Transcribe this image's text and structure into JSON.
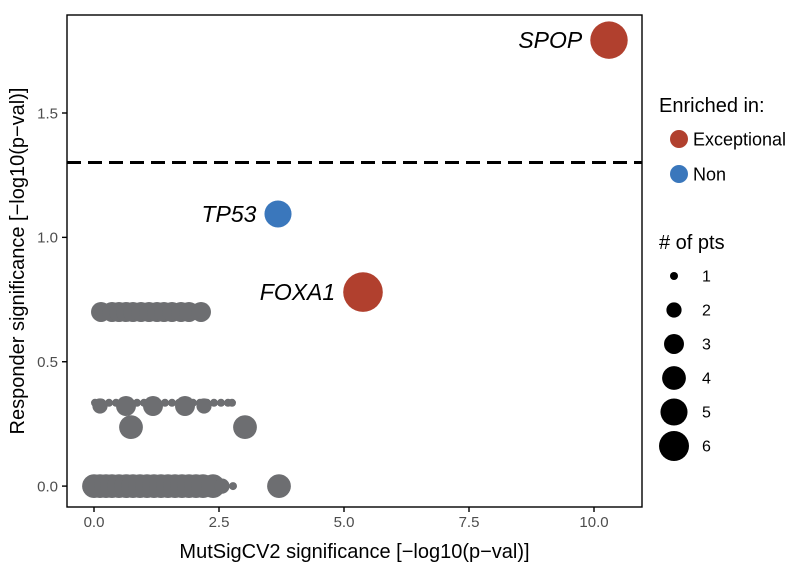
{
  "chart_data": {
    "type": "scatter",
    "xlabel": "MutSigCV2 significance [−log10(p−val)]",
    "ylabel": "Responder significance [−log10(p−val)]",
    "xlim": [
      -0.54,
      10.96
    ],
    "ylim": [
      -0.084,
      1.894
    ],
    "xticks": [
      0,
      2.5,
      5,
      7.5,
      10
    ],
    "xtick_labels": [
      "0.0",
      "2.5",
      "5.0",
      "7.5",
      "10.0"
    ],
    "yticks": [
      0,
      0.5,
      1,
      1.5
    ],
    "ytick_labels": [
      "0.0",
      "0.5",
      "1.0",
      "1.5"
    ],
    "grid": false,
    "threshold_line_y": 1.301,
    "series": [
      {
        "name": "Exceptional",
        "color": "#B1402E",
        "points": [
          {
            "x": 10.3,
            "y": 1.793,
            "pts": 9,
            "label": "SPOP"
          },
          {
            "x": 5.38,
            "y": 0.78,
            "pts": 10,
            "label": "FOXA1"
          }
        ]
      },
      {
        "name": "Non",
        "color": "#3A77BC",
        "points": [
          {
            "x": 3.68,
            "y": 1.094,
            "pts": 5,
            "label": "TP53"
          }
        ]
      },
      {
        "color": "#6D6E71",
        "points": [
          {
            "x": 0.14,
            "y": 0.7,
            "pts": 3
          },
          {
            "x": 0.36,
            "y": 0.7,
            "pts": 3
          },
          {
            "x": 0.5,
            "y": 0.7,
            "pts": 3
          },
          {
            "x": 0.64,
            "y": 0.7,
            "pts": 3
          },
          {
            "x": 0.78,
            "y": 0.7,
            "pts": 3
          },
          {
            "x": 0.94,
            "y": 0.7,
            "pts": 3
          },
          {
            "x": 1.1,
            "y": 0.7,
            "pts": 3
          },
          {
            "x": 1.26,
            "y": 0.7,
            "pts": 3
          },
          {
            "x": 1.4,
            "y": 0.7,
            "pts": 3
          },
          {
            "x": 1.56,
            "y": 0.7,
            "pts": 3
          },
          {
            "x": 1.74,
            "y": 0.7,
            "pts": 3
          },
          {
            "x": 1.9,
            "y": 0.7,
            "pts": 3
          },
          {
            "x": 2.14,
            "y": 0.7,
            "pts": 3
          },
          {
            "x": 0.02,
            "y": 0.335,
            "pts": 1
          },
          {
            "x": 0.16,
            "y": 0.335,
            "pts": 1
          },
          {
            "x": 0.3,
            "y": 0.335,
            "pts": 1
          },
          {
            "x": 0.44,
            "y": 0.335,
            "pts": 1
          },
          {
            "x": 0.58,
            "y": 0.335,
            "pts": 1
          },
          {
            "x": 0.72,
            "y": 0.335,
            "pts": 1
          },
          {
            "x": 0.86,
            "y": 0.335,
            "pts": 1
          },
          {
            "x": 1.0,
            "y": 0.335,
            "pts": 1
          },
          {
            "x": 1.14,
            "y": 0.335,
            "pts": 1
          },
          {
            "x": 1.28,
            "y": 0.335,
            "pts": 1
          },
          {
            "x": 1.42,
            "y": 0.335,
            "pts": 1
          },
          {
            "x": 1.56,
            "y": 0.335,
            "pts": 1
          },
          {
            "x": 1.7,
            "y": 0.335,
            "pts": 1
          },
          {
            "x": 1.84,
            "y": 0.335,
            "pts": 1
          },
          {
            "x": 1.98,
            "y": 0.335,
            "pts": 1
          },
          {
            "x": 2.12,
            "y": 0.335,
            "pts": 1
          },
          {
            "x": 2.26,
            "y": 0.335,
            "pts": 1
          },
          {
            "x": 2.4,
            "y": 0.335,
            "pts": 1
          },
          {
            "x": 2.54,
            "y": 0.335,
            "pts": 1
          },
          {
            "x": 2.68,
            "y": 0.335,
            "pts": 1
          },
          {
            "x": 2.76,
            "y": 0.335,
            "pts": 1
          },
          {
            "x": 0.12,
            "y": 0.322,
            "pts": 2
          },
          {
            "x": 0.64,
            "y": 0.322,
            "pts": 3
          },
          {
            "x": 1.18,
            "y": 0.322,
            "pts": 3
          },
          {
            "x": 1.82,
            "y": 0.322,
            "pts": 3
          },
          {
            "x": 2.2,
            "y": 0.322,
            "pts": 2
          },
          {
            "x": 0.74,
            "y": 0.237,
            "pts": 4
          },
          {
            "x": 3.02,
            "y": 0.237,
            "pts": 4
          },
          {
            "x": 0.0,
            "y": 0,
            "pts": 4
          },
          {
            "x": 0.12,
            "y": 0,
            "pts": 4
          },
          {
            "x": 0.24,
            "y": 0,
            "pts": 4
          },
          {
            "x": 0.36,
            "y": 0,
            "pts": 4
          },
          {
            "x": 0.5,
            "y": 0,
            "pts": 4
          },
          {
            "x": 0.64,
            "y": 0,
            "pts": 4
          },
          {
            "x": 0.78,
            "y": 0,
            "pts": 4
          },
          {
            "x": 0.92,
            "y": 0,
            "pts": 4
          },
          {
            "x": 1.06,
            "y": 0,
            "pts": 4
          },
          {
            "x": 1.2,
            "y": 0,
            "pts": 4
          },
          {
            "x": 1.34,
            "y": 0,
            "pts": 4
          },
          {
            "x": 1.48,
            "y": 0,
            "pts": 4
          },
          {
            "x": 1.62,
            "y": 0,
            "pts": 4
          },
          {
            "x": 1.76,
            "y": 0,
            "pts": 4
          },
          {
            "x": 1.9,
            "y": 0,
            "pts": 4
          },
          {
            "x": 2.04,
            "y": 0,
            "pts": 4
          },
          {
            "x": 2.18,
            "y": 0,
            "pts": 4
          },
          {
            "x": 2.38,
            "y": 0,
            "pts": 4
          },
          {
            "x": 2.56,
            "y": 0,
            "pts": 2
          },
          {
            "x": 2.78,
            "y": 0,
            "pts": 1
          },
          {
            "x": 3.7,
            "y": 0,
            "pts": 4
          }
        ]
      }
    ],
    "legend": {
      "position": "right",
      "color_title": "Enriched in:",
      "size_title": "# of pts",
      "size_breaks": [
        1,
        2,
        3,
        4,
        5,
        6
      ]
    }
  }
}
